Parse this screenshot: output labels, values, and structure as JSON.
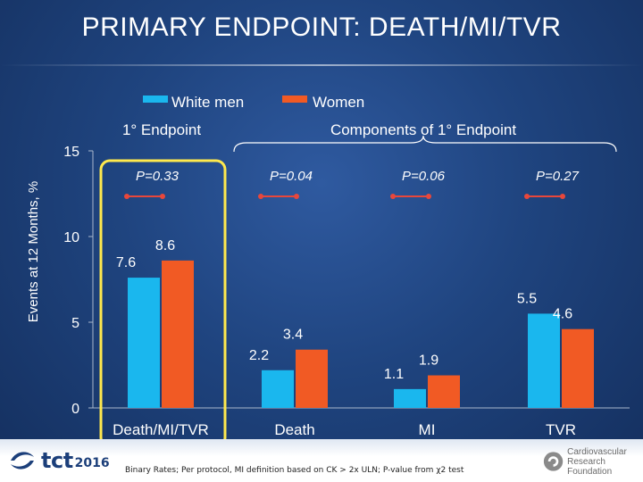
{
  "slide": {
    "title": "PRIMARY ENDPOINT: DEATH/MI/TVR",
    "footnote": "Binary Rates; Per protocol, MI definition based on CK > 2x ULN; P-value from χ2 test"
  },
  "logos": {
    "left": {
      "icon": "tct-logo-icon",
      "text": "tct",
      "year": "2016"
    },
    "right": {
      "icon": "crf-logo-icon",
      "line1": "Cardiovascular",
      "line2": "Research Foundation"
    }
  },
  "chart_data": {
    "type": "bar",
    "ylabel": "Events at 12 Months, %",
    "ylim": [
      0,
      15
    ],
    "yticks": [
      0,
      5,
      10,
      15
    ],
    "categories": [
      "Death/MI/TVR",
      "Death",
      "MI",
      "TVR"
    ],
    "series": [
      {
        "name": "White men",
        "values": [
          7.6,
          2.2,
          1.1,
          5.5
        ],
        "color": "#1ab7ee"
      },
      {
        "name": "Women",
        "values": [
          8.6,
          3.4,
          1.9,
          4.6
        ],
        "color": "#f15a24"
      }
    ],
    "p_values": [
      "P=0.33",
      "P=0.04",
      "P=0.06",
      "P=0.27"
    ],
    "group_labels": {
      "primary": "1° Endpoint",
      "components": "Components of 1° Endpoint"
    },
    "highlight_color": "#ffe94d",
    "connector_color": "#e8473b",
    "legend_position": "top-center",
    "grid": false
  }
}
